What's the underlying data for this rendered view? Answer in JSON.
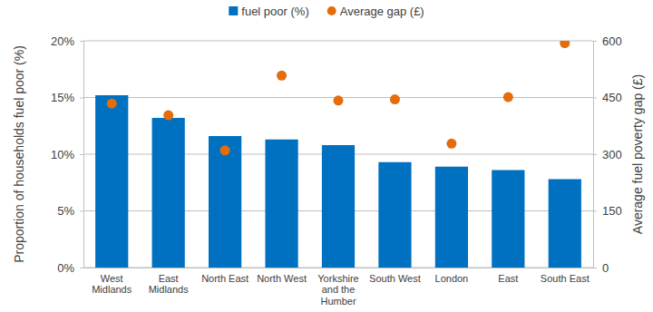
{
  "chart_data": {
    "type": "bar",
    "categories": [
      "West Midlands",
      "East Midlands",
      "North East",
      "North West",
      "Yorkshire and the Humber",
      "South West",
      "London",
      "East",
      "South East"
    ],
    "series": [
      {
        "name": "fuel poor (%)",
        "type": "bar",
        "color": "#0070c0",
        "values": [
          15.2,
          13.2,
          11.6,
          11.3,
          10.8,
          9.3,
          8.9,
          8.6,
          7.8
        ]
      },
      {
        "name": "Average gap (£)",
        "type": "scatter",
        "axis": "y2",
        "color": "#e46c0a",
        "marker": "circle",
        "values": [
          434,
          403,
          310,
          508,
          442,
          445,
          328,
          451,
          594
        ]
      }
    ],
    "y_label": "Proportion of households fuel poor (%)",
    "y2_label": "Average fuel poverty gap (£)",
    "ylim": [
      0,
      20
    ],
    "yticks": [
      {
        "value": 0,
        "label": "0%"
      },
      {
        "value": 5,
        "label": "5%"
      },
      {
        "value": 10,
        "label": "10%"
      },
      {
        "value": 15,
        "label": "15%"
      },
      {
        "value": 20,
        "label": "20%"
      }
    ],
    "y2lim": [
      0,
      600
    ],
    "y2ticks": [
      0,
      150,
      300,
      450,
      600
    ],
    "grid": true,
    "legend": "top"
  }
}
